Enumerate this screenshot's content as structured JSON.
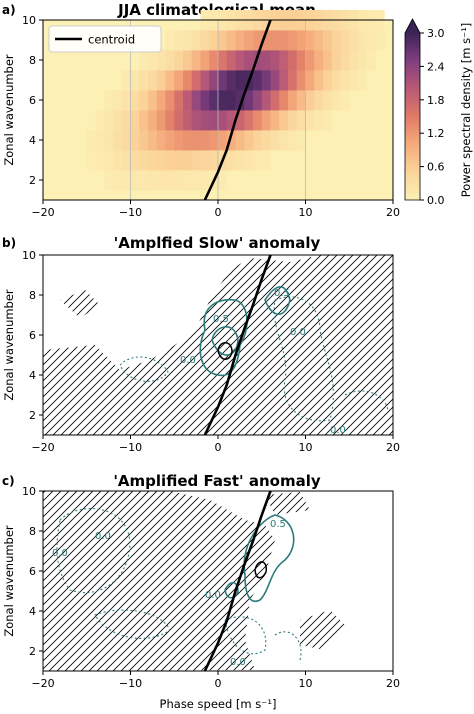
{
  "chart_data": [
    {
      "type": "heatmap",
      "panel_label": "a)",
      "title": "JJA climatological mean",
      "xlabel": "",
      "ylabel": "Zonal wavenumber",
      "xlim": [
        -20,
        20
      ],
      "ylim": [
        1,
        10
      ],
      "xticks": [
        "−20",
        "−10",
        "0",
        "10",
        "20"
      ],
      "yticks": [
        "2",
        "4",
        "6",
        "8",
        "10"
      ],
      "grid_x": true,
      "legend": {
        "location": "upper-left",
        "label": "centroid"
      },
      "colorbar": {
        "label": "Power spectral density [m s⁻¹]",
        "ticks": [
          "0.0",
          "0.6",
          "1.2",
          "1.8",
          "2.4",
          "3.0"
        ],
        "range": [
          0,
          3.0
        ],
        "extend": "max"
      },
      "peak": {
        "x": 2,
        "y": 6.5,
        "value": 3.0
      },
      "centroid": {
        "x": [
          -1.5,
          0,
          1,
          2,
          3,
          4,
          5,
          6
        ],
        "y": [
          1,
          2.4,
          3.5,
          5,
          6.3,
          7.5,
          8.8,
          10
        ]
      }
    },
    {
      "type": "contour",
      "panel_label": "b)",
      "title": "'Amplfied Slow' anomaly",
      "xlabel": "",
      "ylabel": "Zonal wavenumber",
      "xlim": [
        -20,
        20
      ],
      "ylim": [
        1,
        10
      ],
      "xticks": [
        "−20",
        "−10",
        "0",
        "10",
        "20"
      ],
      "yticks": [
        "2",
        "4",
        "6",
        "8",
        "10"
      ],
      "contour_labels": [
        "0.5",
        "0.0",
        "0.0",
        "0.5",
        "0.0"
      ],
      "hatching": "diagonal",
      "centroid": {
        "x": [
          -1.5,
          0,
          1,
          2,
          3,
          4,
          5,
          6
        ],
        "y": [
          1,
          2.4,
          3.5,
          5,
          6.3,
          7.5,
          8.8,
          10
        ]
      }
    },
    {
      "type": "contour",
      "panel_label": "c)",
      "title": "'Amplified Fast' anomaly",
      "xlabel": "Phase speed [m s⁻¹]",
      "ylabel": "Zonal wavenumber",
      "xlim": [
        -20,
        20
      ],
      "ylim": [
        1,
        10
      ],
      "xticks": [
        "−20",
        "−10",
        "0",
        "10",
        "20"
      ],
      "yticks": [
        "2",
        "4",
        "6",
        "8",
        "10"
      ],
      "contour_labels": [
        "0.0",
        "0.0",
        "0.5",
        "0.0",
        "0.0"
      ],
      "hatching": "diagonal",
      "centroid": {
        "x": [
          -1.5,
          0,
          1,
          2,
          3,
          4,
          5,
          6
        ],
        "y": [
          1,
          2.4,
          3.5,
          5,
          6.3,
          7.5,
          8.8,
          10
        ]
      }
    }
  ],
  "colors": {
    "colormap": [
      "#fcf0b4",
      "#fbd49a",
      "#f5a97a",
      "#e07b67",
      "#b85876",
      "#7e3d7f",
      "#3c2356"
    ],
    "contour_teal": "#2b7a7b",
    "centroid": "#000000"
  }
}
